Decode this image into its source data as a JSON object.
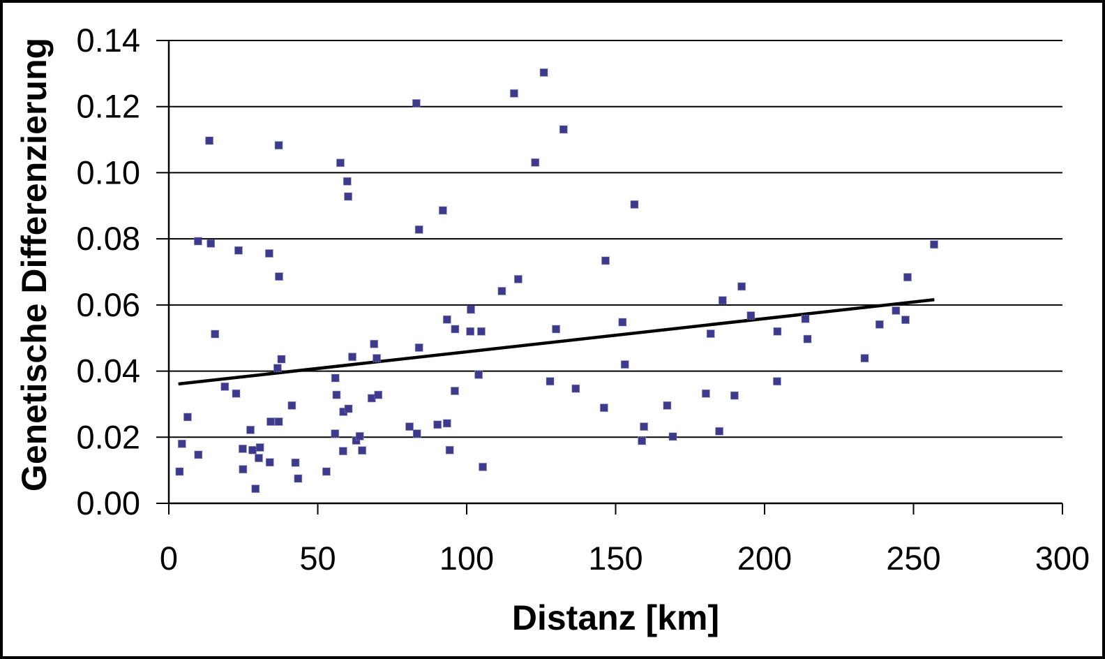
{
  "chart_data": {
    "type": "scatter",
    "title": "",
    "xlabel": "Distanz [km]",
    "ylabel": "Genetische Differenzierung",
    "xlim": [
      0,
      300
    ],
    "ylim": [
      0.0,
      0.14
    ],
    "xticks": [
      0,
      50,
      100,
      150,
      200,
      250,
      300
    ],
    "yticks": [
      "0.00",
      "0.02",
      "0.04",
      "0.06",
      "0.08",
      "0.10",
      "0.12",
      "0.14"
    ],
    "grid": "horizontal-only",
    "legend": "none",
    "marker": {
      "shape": "square",
      "size": 11,
      "color": "#3d3a8c",
      "edge_color": "#8d8bc6"
    },
    "trendline": {
      "x1": 3.2,
      "y1": 0.0361,
      "x2": 257.0,
      "y2": 0.0616,
      "color": "#000000",
      "width": 4.5
    },
    "points": [
      [
        13.6,
        0.1097
      ],
      [
        36.9,
        0.1083
      ],
      [
        57.6,
        0.103
      ],
      [
        59.9,
        0.0974
      ],
      [
        60.2,
        0.0928
      ],
      [
        125.9,
        0.1303
      ],
      [
        115.9,
        0.124
      ],
      [
        83.1,
        0.121
      ],
      [
        132.5,
        0.1131
      ],
      [
        123.0,
        0.1031
      ],
      [
        9.8,
        0.0793
      ],
      [
        14.1,
        0.0786
      ],
      [
        23.4,
        0.0765
      ],
      [
        33.7,
        0.0756
      ],
      [
        37.0,
        0.0686
      ],
      [
        15.5,
        0.0512
      ],
      [
        68.9,
        0.0482
      ],
      [
        92.0,
        0.0886
      ],
      [
        84.0,
        0.0828
      ],
      [
        146.6,
        0.0734
      ],
      [
        117.3,
        0.0678
      ],
      [
        111.8,
        0.0642
      ],
      [
        101.4,
        0.0586
      ],
      [
        93.4,
        0.0556
      ],
      [
        96.1,
        0.0527
      ],
      [
        101.2,
        0.052
      ],
      [
        104.9,
        0.052
      ],
      [
        130.0,
        0.0527
      ],
      [
        156.3,
        0.0904
      ],
      [
        192.3,
        0.0656
      ],
      [
        185.9,
        0.0614
      ],
      [
        195.4,
        0.0568
      ],
      [
        213.7,
        0.0558
      ],
      [
        152.3,
        0.0548
      ],
      [
        181.9,
        0.0513
      ],
      [
        204.3,
        0.052
      ],
      [
        214.4,
        0.0497
      ],
      [
        256.9,
        0.0783
      ],
      [
        248.0,
        0.0684
      ],
      [
        244.1,
        0.0583
      ],
      [
        247.3,
        0.0555
      ],
      [
        238.6,
        0.0541
      ],
      [
        37.8,
        0.0436
      ],
      [
        36.5,
        0.0409
      ],
      [
        61.6,
        0.0443
      ],
      [
        69.8,
        0.0439
      ],
      [
        55.9,
        0.0379
      ],
      [
        18.8,
        0.0353
      ],
      [
        22.6,
        0.0332
      ],
      [
        56.3,
        0.0328
      ],
      [
        68.1,
        0.0318
      ],
      [
        70.3,
        0.0328
      ],
      [
        41.3,
        0.0296
      ],
      [
        6.3,
        0.0261
      ],
      [
        34.2,
        0.0247
      ],
      [
        36.9,
        0.0247
      ],
      [
        27.4,
        0.0222
      ],
      [
        55.8,
        0.0211
      ],
      [
        62.9,
        0.019
      ],
      [
        64.1,
        0.0203
      ],
      [
        4.4,
        0.018
      ],
      [
        24.8,
        0.0165
      ],
      [
        28.1,
        0.0161
      ],
      [
        30.6,
        0.0169
      ],
      [
        30.2,
        0.0137
      ],
      [
        9.9,
        0.0147
      ],
      [
        33.9,
        0.0124
      ],
      [
        42.5,
        0.0123
      ],
      [
        24.9,
        0.0103
      ],
      [
        3.6,
        0.0096
      ],
      [
        52.9,
        0.0096
      ],
      [
        43.4,
        0.0075
      ],
      [
        29.1,
        0.0044
      ],
      [
        84.0,
        0.0471
      ],
      [
        104.0,
        0.0389
      ],
      [
        128.0,
        0.0369
      ],
      [
        96.0,
        0.034
      ],
      [
        136.6,
        0.0347
      ],
      [
        146.1,
        0.0289
      ],
      [
        93.4,
        0.0242
      ],
      [
        90.2,
        0.0238
      ],
      [
        80.8,
        0.0232
      ],
      [
        83.3,
        0.0211
      ],
      [
        94.3,
        0.0161
      ],
      [
        105.4,
        0.011
      ],
      [
        153.1,
        0.042
      ],
      [
        204.2,
        0.0369
      ],
      [
        180.3,
        0.0332
      ],
      [
        189.9,
        0.0326
      ],
      [
        167.3,
        0.0296
      ],
      [
        159.5,
        0.0232
      ],
      [
        184.8,
        0.0218
      ],
      [
        169.2,
        0.0202
      ],
      [
        158.8,
        0.0189
      ],
      [
        233.6,
        0.0439
      ],
      [
        58.6,
        0.0277
      ],
      [
        60.3,
        0.0286
      ],
      [
        58.5,
        0.0158
      ],
      [
        64.9,
        0.016
      ]
    ],
    "axis_color": "#000000",
    "background_color": "#ffffff"
  }
}
